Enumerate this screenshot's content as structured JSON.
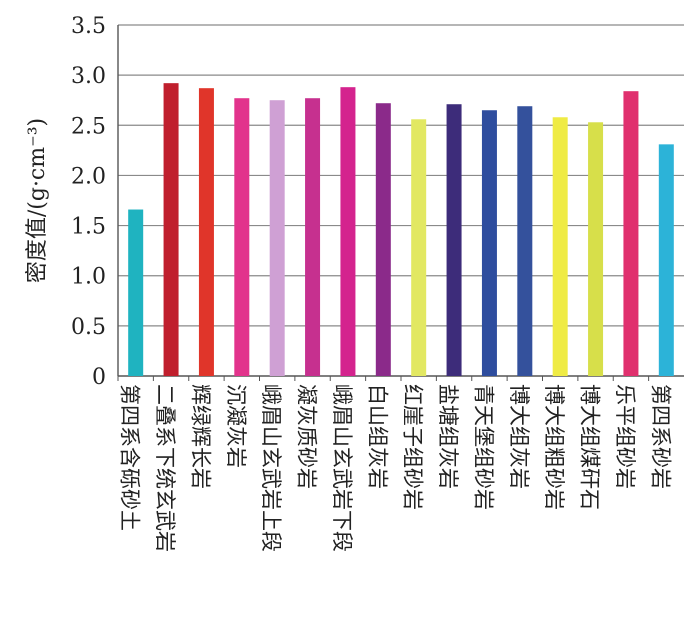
{
  "chart_data": {
    "type": "bar",
    "ylabel": "密度值/(g·cm⁻³)",
    "ylim": [
      0,
      3.5
    ],
    "yticks": [
      "0",
      "0.5",
      "1.0",
      "1.5",
      "2.0",
      "2.5",
      "3.0",
      "3.5"
    ],
    "grid": true,
    "categories": [
      "第四系含砾砂土",
      "二叠系下统玄武岩",
      "辉绿辉长岩",
      "沉凝灰岩",
      "峨眉山玄武岩上段",
      "凝灰质砂岩",
      "峨眉山玄武岩下段",
      "白山组灰岩",
      "红崖子组砂岩",
      "盐塘组灰岩",
      "青天堡组砂岩",
      "博大组灰岩",
      "博大组粗砂岩",
      "博大组煤矸石",
      "乐平组砂岩",
      "第四系砂岩"
    ],
    "values": [
      1.66,
      2.92,
      2.87,
      2.77,
      2.75,
      2.77,
      2.88,
      2.72,
      2.56,
      2.71,
      2.65,
      2.69,
      2.58,
      2.53,
      2.84,
      2.31
    ],
    "colors": [
      "#1fb3c0",
      "#c01f2d",
      "#e0352a",
      "#e2338c",
      "#cfa0d4",
      "#c6308f",
      "#d4238e",
      "#8b2a8a",
      "#e2e862",
      "#3d2c7a",
      "#2e4d9e",
      "#34519c",
      "#efeb44",
      "#d7df4a",
      "#e0306e",
      "#2cb3d8"
    ]
  }
}
